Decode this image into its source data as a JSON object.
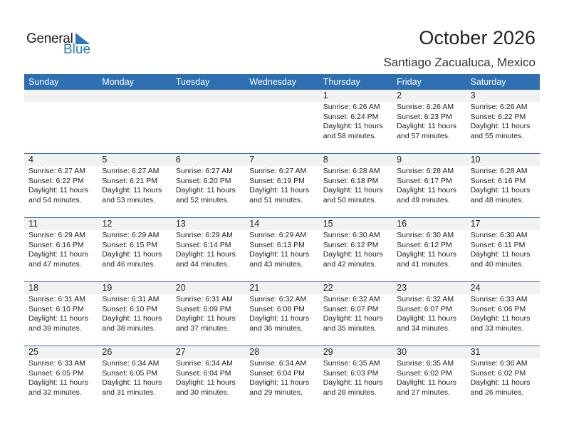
{
  "logo": {
    "line1": "General",
    "line2": "Blue"
  },
  "title": "October 2026",
  "location": "Santiago Zacualuca, Mexico",
  "weekdays": [
    "Sunday",
    "Monday",
    "Tuesday",
    "Wednesday",
    "Thursday",
    "Friday",
    "Saturday"
  ],
  "first_weekday_index": 4,
  "days": [
    {
      "d": "1",
      "sunrise": "Sunrise: 6:26 AM",
      "sunset": "Sunset: 6:24 PM",
      "dl1": "Daylight: 11 hours",
      "dl2": "and 58 minutes."
    },
    {
      "d": "2",
      "sunrise": "Sunrise: 6:26 AM",
      "sunset": "Sunset: 6:23 PM",
      "dl1": "Daylight: 11 hours",
      "dl2": "and 57 minutes."
    },
    {
      "d": "3",
      "sunrise": "Sunrise: 6:26 AM",
      "sunset": "Sunset: 6:22 PM",
      "dl1": "Daylight: 11 hours",
      "dl2": "and 55 minutes."
    },
    {
      "d": "4",
      "sunrise": "Sunrise: 6:27 AM",
      "sunset": "Sunset: 6:22 PM",
      "dl1": "Daylight: 11 hours",
      "dl2": "and 54 minutes."
    },
    {
      "d": "5",
      "sunrise": "Sunrise: 6:27 AM",
      "sunset": "Sunset: 6:21 PM",
      "dl1": "Daylight: 11 hours",
      "dl2": "and 53 minutes."
    },
    {
      "d": "6",
      "sunrise": "Sunrise: 6:27 AM",
      "sunset": "Sunset: 6:20 PM",
      "dl1": "Daylight: 11 hours",
      "dl2": "and 52 minutes."
    },
    {
      "d": "7",
      "sunrise": "Sunrise: 6:27 AM",
      "sunset": "Sunset: 6:19 PM",
      "dl1": "Daylight: 11 hours",
      "dl2": "and 51 minutes."
    },
    {
      "d": "8",
      "sunrise": "Sunrise: 6:28 AM",
      "sunset": "Sunset: 6:18 PM",
      "dl1": "Daylight: 11 hours",
      "dl2": "and 50 minutes."
    },
    {
      "d": "9",
      "sunrise": "Sunrise: 6:28 AM",
      "sunset": "Sunset: 6:17 PM",
      "dl1": "Daylight: 11 hours",
      "dl2": "and 49 minutes."
    },
    {
      "d": "10",
      "sunrise": "Sunrise: 6:28 AM",
      "sunset": "Sunset: 6:16 PM",
      "dl1": "Daylight: 11 hours",
      "dl2": "and 48 minutes."
    },
    {
      "d": "11",
      "sunrise": "Sunrise: 6:29 AM",
      "sunset": "Sunset: 6:16 PM",
      "dl1": "Daylight: 11 hours",
      "dl2": "and 47 minutes."
    },
    {
      "d": "12",
      "sunrise": "Sunrise: 6:29 AM",
      "sunset": "Sunset: 6:15 PM",
      "dl1": "Daylight: 11 hours",
      "dl2": "and 46 minutes."
    },
    {
      "d": "13",
      "sunrise": "Sunrise: 6:29 AM",
      "sunset": "Sunset: 6:14 PM",
      "dl1": "Daylight: 11 hours",
      "dl2": "and 44 minutes."
    },
    {
      "d": "14",
      "sunrise": "Sunrise: 6:29 AM",
      "sunset": "Sunset: 6:13 PM",
      "dl1": "Daylight: 11 hours",
      "dl2": "and 43 minutes."
    },
    {
      "d": "15",
      "sunrise": "Sunrise: 6:30 AM",
      "sunset": "Sunset: 6:12 PM",
      "dl1": "Daylight: 11 hours",
      "dl2": "and 42 minutes."
    },
    {
      "d": "16",
      "sunrise": "Sunrise: 6:30 AM",
      "sunset": "Sunset: 6:12 PM",
      "dl1": "Daylight: 11 hours",
      "dl2": "and 41 minutes."
    },
    {
      "d": "17",
      "sunrise": "Sunrise: 6:30 AM",
      "sunset": "Sunset: 6:11 PM",
      "dl1": "Daylight: 11 hours",
      "dl2": "and 40 minutes."
    },
    {
      "d": "18",
      "sunrise": "Sunrise: 6:31 AM",
      "sunset": "Sunset: 6:10 PM",
      "dl1": "Daylight: 11 hours",
      "dl2": "and 39 minutes."
    },
    {
      "d": "19",
      "sunrise": "Sunrise: 6:31 AM",
      "sunset": "Sunset: 6:10 PM",
      "dl1": "Daylight: 11 hours",
      "dl2": "and 38 minutes."
    },
    {
      "d": "20",
      "sunrise": "Sunrise: 6:31 AM",
      "sunset": "Sunset: 6:09 PM",
      "dl1": "Daylight: 11 hours",
      "dl2": "and 37 minutes."
    },
    {
      "d": "21",
      "sunrise": "Sunrise: 6:32 AM",
      "sunset": "Sunset: 6:08 PM",
      "dl1": "Daylight: 11 hours",
      "dl2": "and 36 minutes."
    },
    {
      "d": "22",
      "sunrise": "Sunrise: 6:32 AM",
      "sunset": "Sunset: 6:07 PM",
      "dl1": "Daylight: 11 hours",
      "dl2": "and 35 minutes."
    },
    {
      "d": "23",
      "sunrise": "Sunrise: 6:32 AM",
      "sunset": "Sunset: 6:07 PM",
      "dl1": "Daylight: 11 hours",
      "dl2": "and 34 minutes."
    },
    {
      "d": "24",
      "sunrise": "Sunrise: 6:33 AM",
      "sunset": "Sunset: 6:06 PM",
      "dl1": "Daylight: 11 hours",
      "dl2": "and 33 minutes."
    },
    {
      "d": "25",
      "sunrise": "Sunrise: 6:33 AM",
      "sunset": "Sunset: 6:05 PM",
      "dl1": "Daylight: 11 hours",
      "dl2": "and 32 minutes."
    },
    {
      "d": "26",
      "sunrise": "Sunrise: 6:34 AM",
      "sunset": "Sunset: 6:05 PM",
      "dl1": "Daylight: 11 hours",
      "dl2": "and 31 minutes."
    },
    {
      "d": "27",
      "sunrise": "Sunrise: 6:34 AM",
      "sunset": "Sunset: 6:04 PM",
      "dl1": "Daylight: 11 hours",
      "dl2": "and 30 minutes."
    },
    {
      "d": "28",
      "sunrise": "Sunrise: 6:34 AM",
      "sunset": "Sunset: 6:04 PM",
      "dl1": "Daylight: 11 hours",
      "dl2": "and 29 minutes."
    },
    {
      "d": "29",
      "sunrise": "Sunrise: 6:35 AM",
      "sunset": "Sunset: 6:03 PM",
      "dl1": "Daylight: 11 hours",
      "dl2": "and 28 minutes."
    },
    {
      "d": "30",
      "sunrise": "Sunrise: 6:35 AM",
      "sunset": "Sunset: 6:02 PM",
      "dl1": "Daylight: 11 hours",
      "dl2": "and 27 minutes."
    },
    {
      "d": "31",
      "sunrise": "Sunrise: 6:36 AM",
      "sunset": "Sunset: 6:02 PM",
      "dl1": "Daylight: 11 hours",
      "dl2": "and 26 minutes."
    }
  ],
  "colors": {
    "header": "#2e6fb1",
    "day_bar": "#f2f2f2",
    "logo_blue": "#2c77bf"
  }
}
